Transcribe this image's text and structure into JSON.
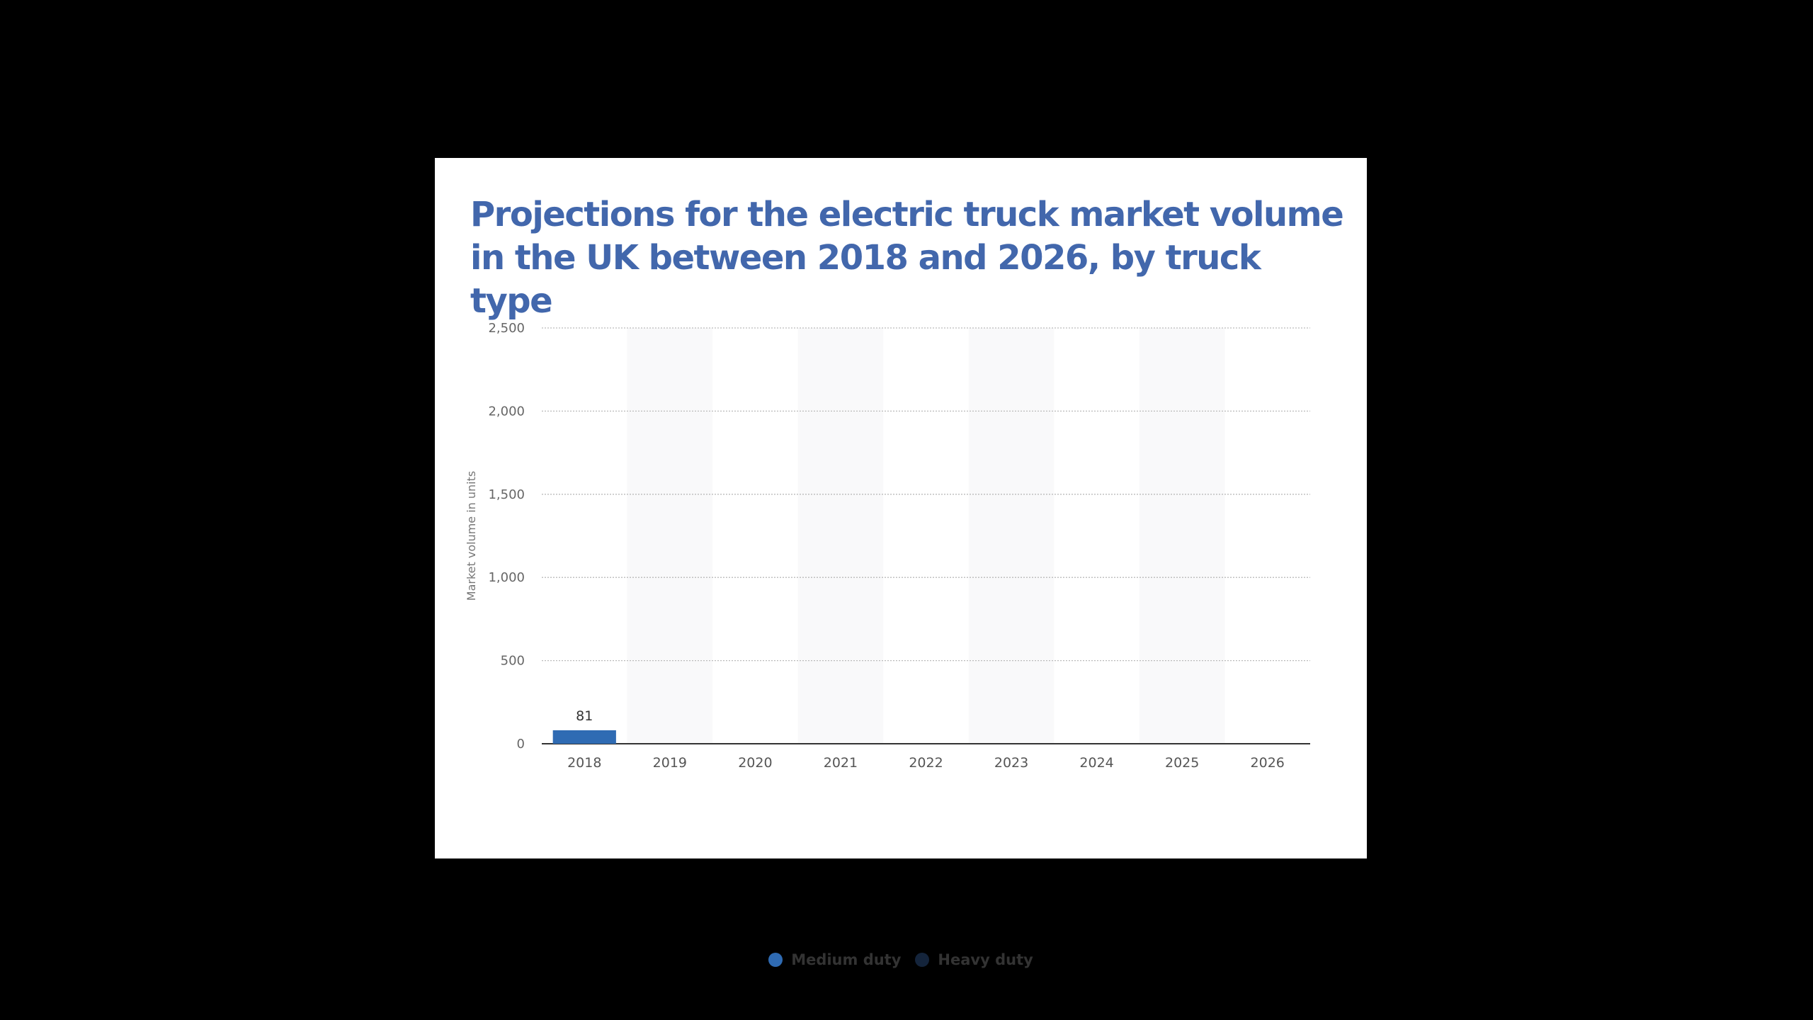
{
  "colors": {
    "title": "#4267ac",
    "medium_duty": "#2f6bb3",
    "heavy_duty": "#14243b",
    "band": "#f9f9fa",
    "grid": "#bbbbbb",
    "axis": "#333333"
  },
  "chart_data": {
    "type": "bar",
    "title": "Projections for the electric truck market volume in the UK between 2018 and 2026, by truck type",
    "xlabel": "",
    "ylabel": "Market volume in units",
    "ylim": [
      0,
      2500
    ],
    "yticks": [
      0,
      500,
      1000,
      1500,
      2000,
      2500
    ],
    "ytick_labels": [
      "0",
      "500",
      "1,000",
      "1,500",
      "2,000",
      "2,500"
    ],
    "grid": true,
    "legend_position": "bottom",
    "categories": [
      "2018",
      "2019",
      "2020",
      "2021",
      "2022",
      "2023",
      "2024",
      "2025",
      "2026"
    ],
    "series": [
      {
        "name": "Medium duty",
        "values": [
          81,
          null,
          null,
          null,
          null,
          null,
          null,
          null,
          null
        ]
      },
      {
        "name": "Heavy duty",
        "values": [
          null,
          null,
          null,
          null,
          null,
          null,
          null,
          null,
          null
        ]
      }
    ],
    "data_labels": [
      "81",
      "",
      "",
      "",
      "",
      "",
      "",
      "",
      ""
    ]
  }
}
